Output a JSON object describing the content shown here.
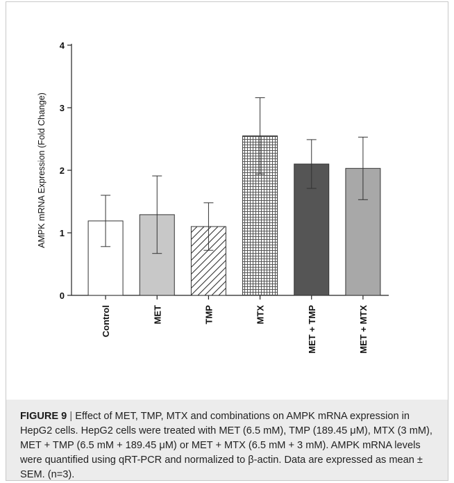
{
  "chart_data": {
    "type": "bar",
    "categories": [
      "Control",
      "MET",
      "TMP",
      "MTX",
      "MET + TMP",
      "MET + MTX"
    ],
    "values": [
      1.19,
      1.29,
      1.1,
      2.55,
      2.1,
      2.03
    ],
    "errors": [
      0.41,
      0.62,
      0.38,
      0.61,
      0.39,
      0.5
    ],
    "ylabel": "AMPK mRNA Expression (Fold Change)",
    "ylim": [
      0,
      4
    ],
    "yticks": [
      0,
      1,
      2,
      3,
      4
    ],
    "grid": false,
    "bar_fills": [
      "white",
      "light-gray",
      "diagonal-hatch",
      "crosshatch",
      "dark-gray",
      "medium-gray"
    ]
  },
  "caption": {
    "label": "FIGURE 9",
    "separator": "|",
    "text": "Effect of MET, TMP, MTX and combinations on AMPK mRNA expression in HepG2 cells. HepG2 cells were treated with MET (6.5 mM), TMP (189.45 μM), MTX (3 mM), MET + TMP (6.5 mM + 189.45 μM) or MET + MTX (6.5 mM + 3 mM). AMPK mRNA levels were quantified using qRT-PCR and normalized to β-actin. Data are expressed as mean ± SEM. (n=3)."
  }
}
